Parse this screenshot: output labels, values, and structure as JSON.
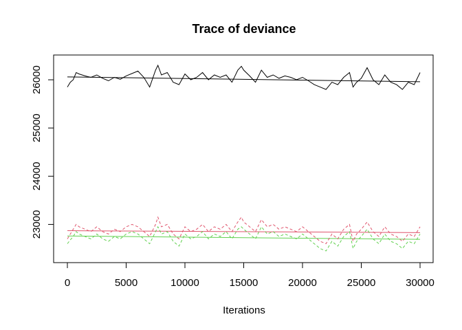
{
  "chart_data": {
    "type": "line",
    "title": "Trace of deviance",
    "xlabel": "Iterations",
    "ylabel": "",
    "xlim": [
      0,
      30000
    ],
    "ylim": [
      22350,
      26400
    ],
    "xticks": [
      0,
      5000,
      10000,
      15000,
      20000,
      25000,
      30000
    ],
    "yticks": [
      23000,
      24000,
      25000,
      26000
    ],
    "grid": false,
    "legend": "none",
    "series": [
      {
        "color": "#000000",
        "dash": "solid",
        "values": [
          [
            0,
            25850
          ],
          [
            250,
            25950
          ],
          [
            500,
            26000
          ],
          [
            750,
            26150
          ],
          [
            1000,
            26120
          ],
          [
            1500,
            26080
          ],
          [
            2000,
            26050
          ],
          [
            2500,
            26100
          ],
          [
            3000,
            26030
          ],
          [
            3500,
            25980
          ],
          [
            4000,
            26050
          ],
          [
            4500,
            26010
          ],
          [
            5000,
            26080
          ],
          [
            5500,
            26130
          ],
          [
            6000,
            26180
          ],
          [
            6500,
            26050
          ],
          [
            7000,
            25850
          ],
          [
            7500,
            26200
          ],
          [
            7700,
            26300
          ],
          [
            8000,
            26100
          ],
          [
            8500,
            26150
          ],
          [
            9000,
            25950
          ],
          [
            9500,
            25900
          ],
          [
            10000,
            26120
          ],
          [
            10500,
            26000
          ],
          [
            11000,
            26050
          ],
          [
            11500,
            26150
          ],
          [
            12000,
            26000
          ],
          [
            12500,
            26100
          ],
          [
            13000,
            26050
          ],
          [
            13500,
            26100
          ],
          [
            14000,
            25950
          ],
          [
            14500,
            26200
          ],
          [
            14800,
            26280
          ],
          [
            15000,
            26200
          ],
          [
            15500,
            26080
          ],
          [
            16000,
            25950
          ],
          [
            16500,
            26200
          ],
          [
            17000,
            26050
          ],
          [
            17500,
            26100
          ],
          [
            18000,
            26030
          ],
          [
            18500,
            26080
          ],
          [
            19000,
            26050
          ],
          [
            19500,
            26000
          ],
          [
            20000,
            26050
          ],
          [
            20500,
            25980
          ],
          [
            21000,
            25900
          ],
          [
            21500,
            25850
          ],
          [
            22000,
            25800
          ],
          [
            22500,
            25950
          ],
          [
            23000,
            25900
          ],
          [
            23500,
            26050
          ],
          [
            24000,
            26150
          ],
          [
            24300,
            25850
          ],
          [
            24600,
            25950
          ],
          [
            25000,
            26030
          ],
          [
            25500,
            26250
          ],
          [
            26000,
            26000
          ],
          [
            26500,
            25900
          ],
          [
            27000,
            26100
          ],
          [
            27500,
            25950
          ],
          [
            28000,
            25900
          ],
          [
            28500,
            25800
          ],
          [
            29000,
            25950
          ],
          [
            29500,
            25900
          ],
          [
            30000,
            26150
          ]
        ]
      },
      {
        "color": "#df536b",
        "dash": "4,3",
        "values": [
          [
            0,
            22700
          ],
          [
            250,
            22800
          ],
          [
            500,
            22900
          ],
          [
            750,
            23000
          ],
          [
            1000,
            22950
          ],
          [
            1500,
            22900
          ],
          [
            2000,
            22850
          ],
          [
            2500,
            22950
          ],
          [
            3000,
            22850
          ],
          [
            3500,
            22800
          ],
          [
            4000,
            22900
          ],
          [
            4500,
            22850
          ],
          [
            5000,
            22950
          ],
          [
            5500,
            23000
          ],
          [
            6000,
            22950
          ],
          [
            6500,
            22850
          ],
          [
            7000,
            22750
          ],
          [
            7500,
            23000
          ],
          [
            7700,
            23150
          ],
          [
            8000,
            22950
          ],
          [
            8500,
            23000
          ],
          [
            9000,
            22800
          ],
          [
            9500,
            22700
          ],
          [
            10000,
            22950
          ],
          [
            10500,
            22850
          ],
          [
            11000,
            22900
          ],
          [
            11500,
            23000
          ],
          [
            12000,
            22850
          ],
          [
            12500,
            22950
          ],
          [
            13000,
            22900
          ],
          [
            13500,
            23000
          ],
          [
            14000,
            22850
          ],
          [
            14500,
            23050
          ],
          [
            14800,
            23150
          ],
          [
            15000,
            23050
          ],
          [
            15500,
            22950
          ],
          [
            16000,
            22850
          ],
          [
            16500,
            23100
          ],
          [
            17000,
            22950
          ],
          [
            17500,
            23000
          ],
          [
            18000,
            22900
          ],
          [
            18500,
            22950
          ],
          [
            19000,
            22900
          ],
          [
            19500,
            22850
          ],
          [
            20000,
            22950
          ],
          [
            20500,
            22850
          ],
          [
            21000,
            22750
          ],
          [
            21500,
            22650
          ],
          [
            22000,
            22600
          ],
          [
            22500,
            22800
          ],
          [
            23000,
            22700
          ],
          [
            23500,
            22900
          ],
          [
            24000,
            23000
          ],
          [
            24300,
            22650
          ],
          [
            24600,
            22800
          ],
          [
            25000,
            22900
          ],
          [
            25500,
            23050
          ],
          [
            26000,
            22850
          ],
          [
            26500,
            22750
          ],
          [
            27000,
            22950
          ],
          [
            27500,
            22800
          ],
          [
            28000,
            22750
          ],
          [
            28500,
            22650
          ],
          [
            29000,
            22800
          ],
          [
            29500,
            22750
          ],
          [
            30000,
            22950
          ]
        ]
      },
      {
        "color": "#61d04f",
        "dash": "4,3",
        "values": [
          [
            0,
            22600
          ],
          [
            250,
            22680
          ],
          [
            500,
            22750
          ],
          [
            750,
            22850
          ],
          [
            1000,
            22800
          ],
          [
            1500,
            22750
          ],
          [
            2000,
            22700
          ],
          [
            2500,
            22800
          ],
          [
            3000,
            22700
          ],
          [
            3500,
            22650
          ],
          [
            4000,
            22750
          ],
          [
            4500,
            22700
          ],
          [
            5000,
            22800
          ],
          [
            5500,
            22850
          ],
          [
            6000,
            22800
          ],
          [
            6500,
            22700
          ],
          [
            7000,
            22600
          ],
          [
            7500,
            22850
          ],
          [
            7700,
            22950
          ],
          [
            8000,
            22800
          ],
          [
            8500,
            22850
          ],
          [
            9000,
            22650
          ],
          [
            9500,
            22550
          ],
          [
            10000,
            22800
          ],
          [
            10500,
            22700
          ],
          [
            11000,
            22750
          ],
          [
            11500,
            22850
          ],
          [
            12000,
            22700
          ],
          [
            12500,
            22800
          ],
          [
            13000,
            22750
          ],
          [
            13500,
            22850
          ],
          [
            14000,
            22700
          ],
          [
            14500,
            22900
          ],
          [
            14800,
            22950
          ],
          [
            15000,
            22900
          ],
          [
            15500,
            22800
          ],
          [
            16000,
            22700
          ],
          [
            16500,
            22950
          ],
          [
            17000,
            22800
          ],
          [
            17500,
            22850
          ],
          [
            18000,
            22750
          ],
          [
            18500,
            22800
          ],
          [
            19000,
            22750
          ],
          [
            19500,
            22700
          ],
          [
            20000,
            22800
          ],
          [
            20500,
            22700
          ],
          [
            21000,
            22600
          ],
          [
            21500,
            22500
          ],
          [
            22000,
            22450
          ],
          [
            22500,
            22650
          ],
          [
            23000,
            22550
          ],
          [
            23500,
            22750
          ],
          [
            24000,
            22850
          ],
          [
            24300,
            22500
          ],
          [
            24600,
            22650
          ],
          [
            25000,
            22750
          ],
          [
            25500,
            22900
          ],
          [
            26000,
            22700
          ],
          [
            26500,
            22600
          ],
          [
            27000,
            22800
          ],
          [
            27500,
            22650
          ],
          [
            28000,
            22600
          ],
          [
            28500,
            22500
          ],
          [
            29000,
            22650
          ],
          [
            29500,
            22600
          ],
          [
            30000,
            22800
          ]
        ]
      }
    ],
    "reference_lines": [
      {
        "color": "#000000",
        "values": [
          [
            0,
            26060
          ],
          [
            30000,
            25960
          ]
        ]
      },
      {
        "color": "#df536b",
        "values": [
          [
            0,
            22870
          ],
          [
            30000,
            22830
          ]
        ]
      },
      {
        "color": "#61d04f",
        "values": [
          [
            0,
            22760
          ],
          [
            30000,
            22690
          ]
        ]
      }
    ]
  }
}
